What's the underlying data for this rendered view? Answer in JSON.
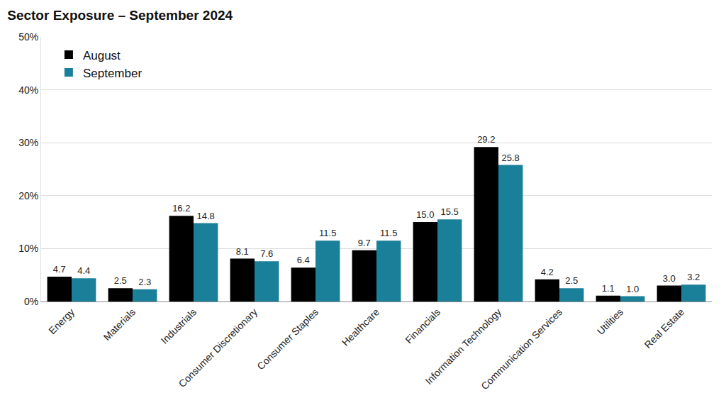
{
  "chart_data": {
    "type": "bar",
    "title": "Sector Exposure – September 2024",
    "categories": [
      "Energy",
      "Materials",
      "Industrials",
      "Consumer Discretionary",
      "Consumer Staples",
      "Healthcare",
      "Financials",
      "Information Technology",
      "Communication Services",
      "Utilities",
      "Real Estate"
    ],
    "series": [
      {
        "name": "August",
        "color": "#000000",
        "values": [
          4.7,
          2.5,
          16.2,
          8.1,
          6.4,
          9.7,
          15.0,
          29.2,
          4.2,
          1.1,
          3.0
        ],
        "value_labels": [
          "4.7",
          "2.5",
          "16.2",
          "8.1",
          "6.4",
          "9.7",
          "15.0",
          "29.2",
          "4.2",
          "1.1",
          "3.0"
        ]
      },
      {
        "name": "September",
        "color": "#1a809a",
        "values": [
          4.4,
          2.3,
          14.8,
          7.6,
          11.5,
          11.5,
          15.5,
          25.8,
          2.5,
          1.0,
          3.2
        ],
        "value_labels": [
          "4.4",
          "2.3",
          "14.8",
          "7.6",
          "11.5",
          "11.5",
          "15.5",
          "25.8",
          "2.5",
          "1.0",
          "3.2"
        ]
      }
    ],
    "ylim": [
      0,
      50
    ],
    "yticks": [
      {
        "value": 0,
        "label": "0%"
      },
      {
        "value": 10,
        "label": "10%"
      },
      {
        "value": 20,
        "label": "20%"
      },
      {
        "value": 30,
        "label": "30%"
      },
      {
        "value": 40,
        "label": "40%"
      },
      {
        "value": 50,
        "label": "50%"
      }
    ],
    "grid": true,
    "data_labels": true,
    "legend": "upper left"
  }
}
